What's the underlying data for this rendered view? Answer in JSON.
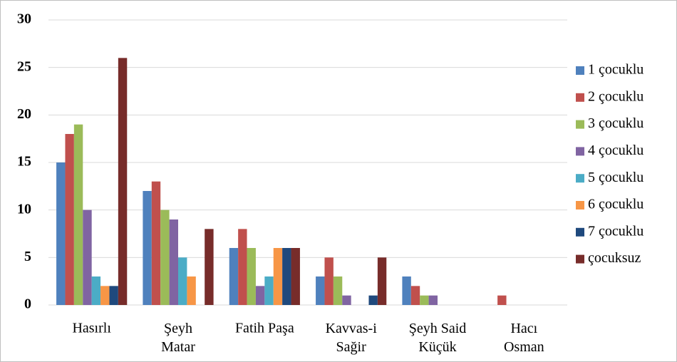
{
  "chart_data": {
    "type": "bar",
    "categories": [
      "Hasırlı",
      "Şeyh\nMatar",
      "Fatih Paşa",
      "Kavvas-i\nSağir",
      "Şeyh Said\nKüçük",
      "Hacı\nOsman"
    ],
    "series": [
      {
        "name": "1 çocuklu",
        "color": "#4f81bd",
        "values": [
          15,
          12,
          6,
          3,
          3,
          0
        ]
      },
      {
        "name": "2 çocuklu",
        "color": "#c0504d",
        "values": [
          18,
          13,
          8,
          5,
          2,
          1
        ]
      },
      {
        "name": "3 çocuklu",
        "color": "#9bbb59",
        "values": [
          19,
          10,
          6,
          3,
          1,
          0
        ]
      },
      {
        "name": "4 çocuklu",
        "color": "#8064a2",
        "values": [
          10,
          9,
          2,
          1,
          1,
          0
        ]
      },
      {
        "name": "5 çocuklu",
        "color": "#4bacc6",
        "values": [
          3,
          5,
          3,
          0,
          0,
          0
        ]
      },
      {
        "name": "6 çocuklu",
        "color": "#f79646",
        "values": [
          2,
          3,
          6,
          0,
          0,
          0
        ]
      },
      {
        "name": "7 çocuklu",
        "color": "#1f497d",
        "values": [
          2,
          0,
          6,
          1,
          0,
          0
        ]
      },
      {
        "name": "çocuksuz",
        "color": "#772c2a",
        "values": [
          26,
          8,
          6,
          5,
          0,
          0
        ]
      }
    ],
    "ylim": [
      0,
      30
    ],
    "yticks": [
      0,
      5,
      10,
      15,
      20,
      25,
      30
    ],
    "grid": true,
    "legend": "right"
  }
}
